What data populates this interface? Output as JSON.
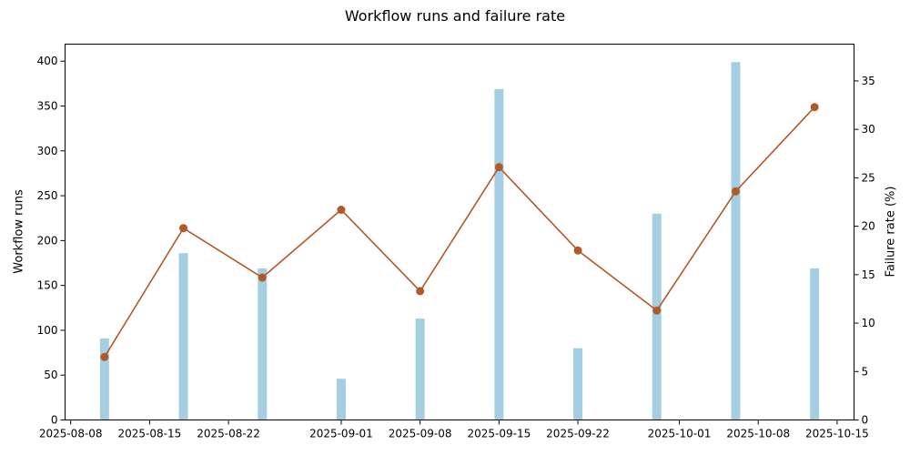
{
  "chart_data": {
    "type": "bar",
    "title": "Workflow runs and failure rate",
    "x": [
      "2025-08-11",
      "2025-08-18",
      "2025-08-25",
      "2025-09-01",
      "2025-09-08",
      "2025-09-15",
      "2025-09-22",
      "2025-09-29",
      "2025-10-06",
      "2025-10-13"
    ],
    "series": [
      {
        "type": "bar",
        "axis": "left",
        "values": [
          91,
          186,
          169,
          46,
          113,
          369,
          80,
          230,
          399,
          169
        ],
        "color": "#a6cee3"
      },
      {
        "type": "line",
        "axis": "right",
        "marker": "circle",
        "values": [
          6.5,
          19.8,
          14.7,
          21.7,
          13.3,
          26.1,
          17.5,
          11.3,
          23.6,
          32.3
        ],
        "color": "#b15928"
      }
    ],
    "ylabel": "Workflow runs",
    "ylabel_right": "Failure rate (%)",
    "xlim": [
      "2025-08-07T12:00",
      "2025-10-16T12:00"
    ],
    "ylim": [
      0,
      419
    ],
    "ylim_right": [
      0,
      38.8
    ],
    "xticks": [
      "2025-08-08",
      "2025-08-15",
      "2025-08-22",
      "2025-09-01",
      "2025-09-08",
      "2025-09-15",
      "2025-09-22",
      "2025-10-01",
      "2025-10-08",
      "2025-10-15"
    ],
    "yticks": [
      0,
      50,
      100,
      150,
      200,
      250,
      300,
      350,
      400
    ],
    "yticks_right": [
      0,
      5,
      10,
      15,
      20,
      25,
      30,
      35
    ],
    "grid": false,
    "legend": "none"
  }
}
